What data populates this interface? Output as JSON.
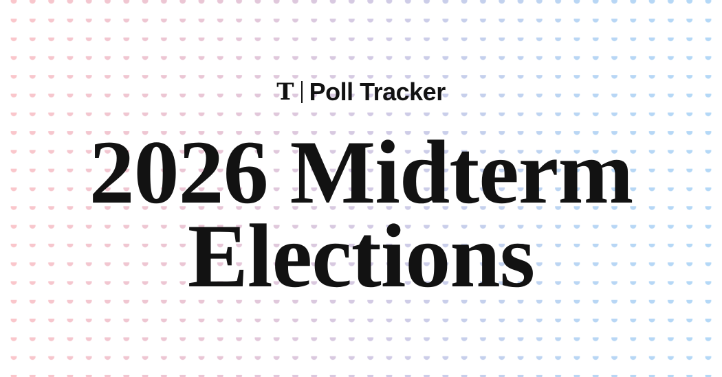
{
  "brand": {
    "logo_text": "T",
    "name": "Poll Tracker"
  },
  "headline": {
    "line1": "2026 Midterm",
    "line2": "Elections"
  },
  "colors": {
    "dots_left": "#fbc6ca",
    "dots_right": "#b3d8f7",
    "text": "#121212"
  }
}
